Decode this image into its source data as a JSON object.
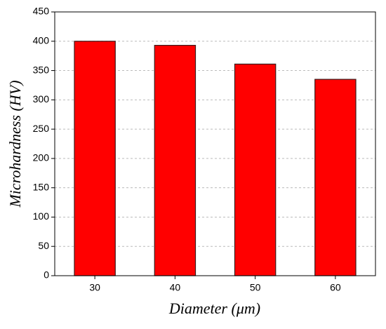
{
  "chart_data": {
    "type": "bar",
    "x_label": "Diameter (μm)",
    "y_label": "Microhardness (HV)",
    "categories": [
      "30",
      "40",
      "50",
      "60"
    ],
    "values": [
      400,
      393,
      361,
      335
    ],
    "color": "#ff0000",
    "ylim": [
      0,
      450
    ],
    "yticks": [
      0,
      50,
      100,
      150,
      200,
      250,
      300,
      350,
      400,
      450
    ],
    "grid": true
  }
}
